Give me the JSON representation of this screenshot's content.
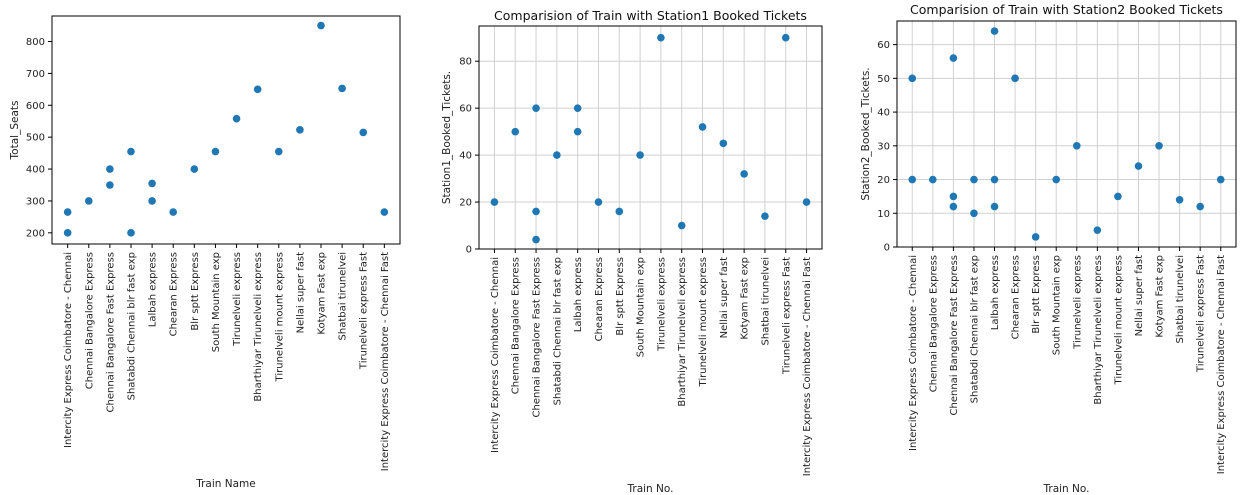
{
  "chart_data": [
    {
      "type": "scatter",
      "title": "",
      "xlabel": "Train Name",
      "ylabel": "Total_Seats",
      "grid": false,
      "ylim": [
        165,
        880
      ],
      "yticks": [
        200,
        300,
        400,
        500,
        600,
        700,
        800
      ],
      "categories": [
        "Intercity Express Coimbatore - Chennai",
        "Chennai Bangalore Express",
        "Chennai Bangalore Fast Express",
        "Shatabdi Chennai blr fast exp",
        "Lalbah express",
        "Chearan Express",
        "Blr sptt Express",
        "South Mountain exp",
        "Tirunelveli express",
        "Bharthiyar Tirunelveli express",
        "Tirunelveli mount express",
        "Nellai super fast",
        "Kotyam Fast exp",
        "Shatbai tirunelvei",
        "Tirunelveli express Fast",
        "Intercity Express Coimbatore - Chennai Fast"
      ],
      "points": [
        {
          "x": "Intercity Express Coimbatore - Chennai",
          "y": 265
        },
        {
          "x": "Intercity Express Coimbatore - Chennai",
          "y": 200
        },
        {
          "x": "Chennai Bangalore Express",
          "y": 300
        },
        {
          "x": "Chennai Bangalore Fast Express",
          "y": 400
        },
        {
          "x": "Chennai Bangalore Fast Express",
          "y": 350
        },
        {
          "x": "Shatabdi Chennai blr fast exp",
          "y": 455
        },
        {
          "x": "Shatabdi Chennai blr fast exp",
          "y": 200
        },
        {
          "x": "Lalbah express",
          "y": 355
        },
        {
          "x": "Lalbah express",
          "y": 300
        },
        {
          "x": "Chearan Express",
          "y": 265
        },
        {
          "x": "Blr sptt Express",
          "y": 400
        },
        {
          "x": "South Mountain exp",
          "y": 455
        },
        {
          "x": "Tirunelveli express",
          "y": 558
        },
        {
          "x": "Bharthiyar Tirunelveli express",
          "y": 650
        },
        {
          "x": "Tirunelveli mount express",
          "y": 455
        },
        {
          "x": "Nellai super fast",
          "y": 523
        },
        {
          "x": "Kotyam Fast exp",
          "y": 850
        },
        {
          "x": "Shatbai tirunelvei",
          "y": 653
        },
        {
          "x": "Tirunelveli express Fast",
          "y": 515
        },
        {
          "x": "Intercity Express Coimbatore - Chennai Fast",
          "y": 265
        }
      ]
    },
    {
      "type": "scatter",
      "title": "Comparision of Train with Station1 Booked Tickets",
      "xlabel": "Train No.",
      "ylabel": "Station1_Booked_Tickets.",
      "grid": true,
      "ylim": [
        0,
        95
      ],
      "yticks": [
        0,
        20,
        40,
        60,
        80
      ],
      "categories": [
        "Intercity Express Coimbatore - Chennai",
        "Chennai Bangalore Express",
        "Chennai Bangalore Fast Express",
        "Shatabdi Chennai blr fast exp",
        "Lalbah express",
        "Chearan Express",
        "Blr sptt Express",
        "South Mountain exp",
        "Tirunelveli express",
        "Bharthiyar Tirunelveli express",
        "Tirunelveli mount express",
        "Nellai super fast",
        "Kotyam Fast exp",
        "Shatbai tirunelvei",
        "Tirunelveli express Fast",
        "Intercity Express Coimbatore - Chennai Fast"
      ],
      "points": [
        {
          "x": "Intercity Express Coimbatore - Chennai",
          "y": 20
        },
        {
          "x": "Chennai Bangalore Express",
          "y": 50
        },
        {
          "x": "Chennai Bangalore Fast Express",
          "y": 60
        },
        {
          "x": "Chennai Bangalore Fast Express",
          "y": 16
        },
        {
          "x": "Chennai Bangalore Fast Express",
          "y": 4
        },
        {
          "x": "Shatabdi Chennai blr fast exp",
          "y": 40
        },
        {
          "x": "Lalbah express",
          "y": 60
        },
        {
          "x": "Lalbah express",
          "y": 50
        },
        {
          "x": "Chearan Express",
          "y": 20
        },
        {
          "x": "Blr sptt Express",
          "y": 16
        },
        {
          "x": "South Mountain exp",
          "y": 40
        },
        {
          "x": "Tirunelveli express",
          "y": 90
        },
        {
          "x": "Bharthiyar Tirunelveli express",
          "y": 10
        },
        {
          "x": "Tirunelveli mount express",
          "y": 52
        },
        {
          "x": "Nellai super fast",
          "y": 45
        },
        {
          "x": "Kotyam Fast exp",
          "y": 32
        },
        {
          "x": "Shatbai tirunelvei",
          "y": 14
        },
        {
          "x": "Tirunelveli express Fast",
          "y": 90
        },
        {
          "x": "Intercity Express Coimbatore - Chennai Fast",
          "y": 20
        }
      ]
    },
    {
      "type": "scatter",
      "title": "Comparision of Train with Station2 Booked Tickets",
      "xlabel": "Train No.",
      "ylabel": "Station2_Booked_Tickets.",
      "grid": true,
      "ylim": [
        0,
        67
      ],
      "yticks": [
        0,
        10,
        20,
        30,
        40,
        50,
        60
      ],
      "categories": [
        "Intercity Express Coimbatore - Chennai",
        "Chennai Bangalore Express",
        "Chennai Bangalore Fast Express",
        "Shatabdi Chennai blr fast exp",
        "Lalbah express",
        "Chearan Express",
        "Blr sptt Express",
        "South Mountain exp",
        "Tirunelveli express",
        "Bharthiyar Tirunelveli express",
        "Tirunelveli mount express",
        "Nellai super fast",
        "Kotyam Fast exp",
        "Shatbai tirunelvei",
        "Tirunelveli express Fast",
        "Intercity Express Coimbatore - Chennai Fast"
      ],
      "points": [
        {
          "x": "Intercity Express Coimbatore - Chennai",
          "y": 50
        },
        {
          "x": "Intercity Express Coimbatore - Chennai",
          "y": 20
        },
        {
          "x": "Chennai Bangalore Express",
          "y": 20
        },
        {
          "x": "Chennai Bangalore Fast Express",
          "y": 56
        },
        {
          "x": "Chennai Bangalore Fast Express",
          "y": 15
        },
        {
          "x": "Chennai Bangalore Fast Express",
          "y": 12
        },
        {
          "x": "Shatabdi Chennai blr fast exp",
          "y": 20
        },
        {
          "x": "Shatabdi Chennai blr fast exp",
          "y": 10
        },
        {
          "x": "Lalbah express",
          "y": 64
        },
        {
          "x": "Lalbah express",
          "y": 20
        },
        {
          "x": "Lalbah express",
          "y": 12
        },
        {
          "x": "Chearan Express",
          "y": 50
        },
        {
          "x": "Blr sptt Express",
          "y": 3
        },
        {
          "x": "South Mountain exp",
          "y": 20
        },
        {
          "x": "Tirunelveli express",
          "y": 30
        },
        {
          "x": "Bharthiyar Tirunelveli express",
          "y": 5
        },
        {
          "x": "Tirunelveli mount express",
          "y": 15
        },
        {
          "x": "Nellai super fast",
          "y": 24
        },
        {
          "x": "Kotyam Fast exp",
          "y": 30
        },
        {
          "x": "Shatbai tirunelvei",
          "y": 14
        },
        {
          "x": "Tirunelveli express Fast",
          "y": 12
        },
        {
          "x": "Intercity Express Coimbatore - Chennai Fast",
          "y": 20
        }
      ]
    }
  ],
  "colors": {
    "marker": "#1f77b4",
    "grid": "#d0d0d0"
  }
}
